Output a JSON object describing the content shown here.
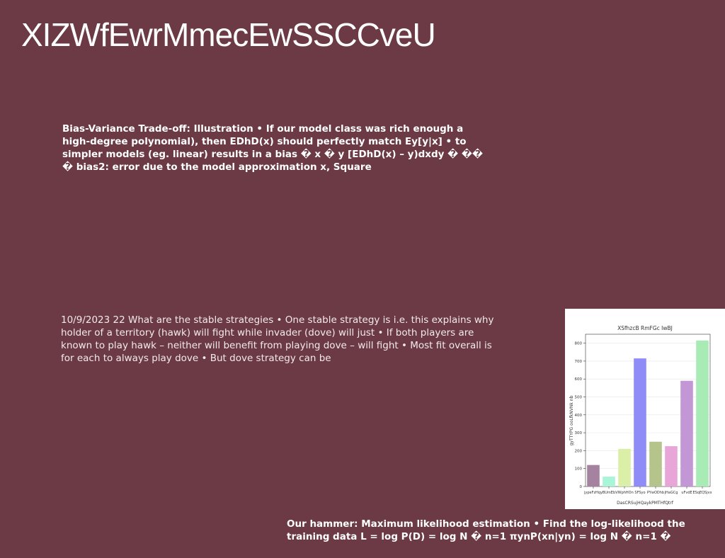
{
  "slide": {
    "title": "XIZWfEwrMmecEwSSCCveU",
    "para_bold": "Bias-Variance Trade-off: Illustration • If our model class was rich enough a high-degree polynomial), then EDhD(x) should perfectly match Ey[y|x] • to simpler models (eg. linear) results in a bias � x � y [EDhD(x) – y)dxdy � �� � bias2: error due to the model approximation x, Square",
    "para_light": "10/9/2023 22 What are the stable strategies • One stable strategy is i.e. this explains why holder of a territory (hawk) will fight while invader (dove) will just • If both players are known to play hawk – neither will benefit from playing dove – will fight • Most fit overall is for each to always play dove • But dove strategy can be",
    "para_bottom": "Our hammer: Maximum likelihood estimation • Find the log-likelihood the training data L = log P(D) = log N � n=1 πynP(xn|yn) = log N � n=1 �"
  },
  "chart_data": {
    "type": "bar",
    "title": "XSfhzcB RmFGc IwBJ",
    "xlabel": "DasCRSujHQaykPMTHfQtrf",
    "ylabel": "gyTTYPG ooLfkNVNk nb",
    "ylim": [
      0,
      850
    ],
    "yticks": [
      0,
      100,
      200,
      300,
      400,
      500,
      600,
      700,
      800
    ],
    "categories": [
      "jypeFzHqy",
      "BUmEb",
      "VWphHOn",
      "SFSyo",
      "PYwODhb",
      "jHaGCg",
      "uFvdE",
      "ESqEQSjvx"
    ],
    "values": [
      120,
      55,
      210,
      715,
      250,
      225,
      590,
      815
    ],
    "colors": [
      "#a583a0",
      "#a8f5d8",
      "#dcefa8",
      "#8f8cf8",
      "#b5c48b",
      "#e8a6d8",
      "#c397d6",
      "#a8ebb5"
    ],
    "grid": true,
    "legend": "none"
  }
}
